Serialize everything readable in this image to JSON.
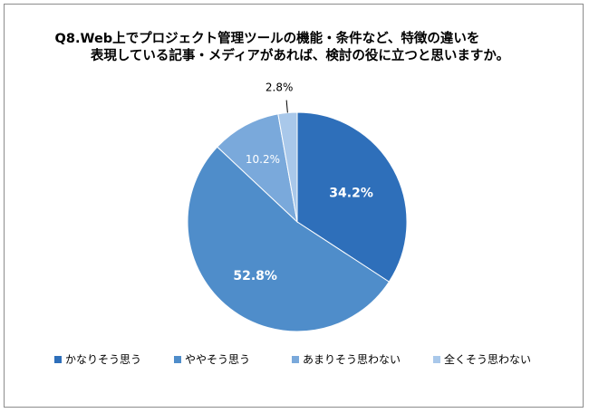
{
  "title": {
    "line1": "Q8.Web上でプロジェクト管理ツールの機能・条件など、特徴の違いを",
    "line2": "表現している記事・メディアがあれば、検討の役に立つと思いますか。"
  },
  "chart_data": {
    "type": "pie",
    "title": "Q8.Web上でプロジェクト管理ツールの機能・条件など、特徴の違いを表現している記事・メディアがあれば、検討の役に立つと思いますか。",
    "unit": "%",
    "start": "12 o'clock",
    "direction": "clockwise",
    "legend_position": "bottom",
    "slices": [
      {
        "label": "かなりそう思う",
        "value": 34.2,
        "value_label": "34.2%",
        "color": "#2e6fba",
        "label_color": "#ffffff"
      },
      {
        "label": "ややそう思う",
        "value": 52.8,
        "value_label": "52.8%",
        "color": "#4f8dca",
        "label_color": "#ffffff"
      },
      {
        "label": "あまりそう思わない",
        "value": 10.2,
        "value_label": "10.2%",
        "color": "#7aa9db",
        "label_color": "#ffffff"
      },
      {
        "label": "全くそう思わない",
        "value": 2.8,
        "value_label": "2.8%",
        "color": "#a9c8ea",
        "label_color": "#000000"
      }
    ]
  }
}
